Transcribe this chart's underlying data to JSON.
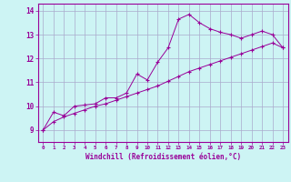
{
  "xlabel": "Windchill (Refroidissement éolien,°C)",
  "background_color": "#cdf4f4",
  "grid_color": "#aaaacc",
  "line_color": "#990099",
  "xlim": [
    -0.5,
    23.5
  ],
  "ylim": [
    8.5,
    14.3
  ],
  "yticks": [
    9,
    10,
    11,
    12,
    13,
    14
  ],
  "xticks": [
    0,
    1,
    2,
    3,
    4,
    5,
    6,
    7,
    8,
    9,
    10,
    11,
    12,
    13,
    14,
    15,
    16,
    17,
    18,
    19,
    20,
    21,
    22,
    23
  ],
  "curve1_x": [
    0,
    1,
    2,
    3,
    4,
    5,
    6,
    7,
    8,
    9,
    10,
    11,
    12,
    13,
    14,
    15,
    16,
    17,
    18,
    19,
    20,
    21,
    22,
    23
  ],
  "curve1_y": [
    9.0,
    9.75,
    9.6,
    10.0,
    10.05,
    10.1,
    10.35,
    10.35,
    10.55,
    11.35,
    11.1,
    11.85,
    12.45,
    13.65,
    13.85,
    13.5,
    13.25,
    13.1,
    13.0,
    12.85,
    13.0,
    13.15,
    13.0,
    12.45
  ],
  "curve2_x": [
    0,
    1,
    2,
    3,
    4,
    5,
    6,
    7,
    8,
    9,
    10,
    11,
    12,
    13,
    14,
    15,
    16,
    17,
    18,
    19,
    20,
    21,
    22,
    23
  ],
  "curve2_y": [
    9.0,
    9.35,
    9.55,
    9.7,
    9.85,
    10.0,
    10.1,
    10.25,
    10.4,
    10.55,
    10.7,
    10.85,
    11.05,
    11.25,
    11.45,
    11.6,
    11.75,
    11.9,
    12.05,
    12.2,
    12.35,
    12.5,
    12.65,
    12.45
  ]
}
